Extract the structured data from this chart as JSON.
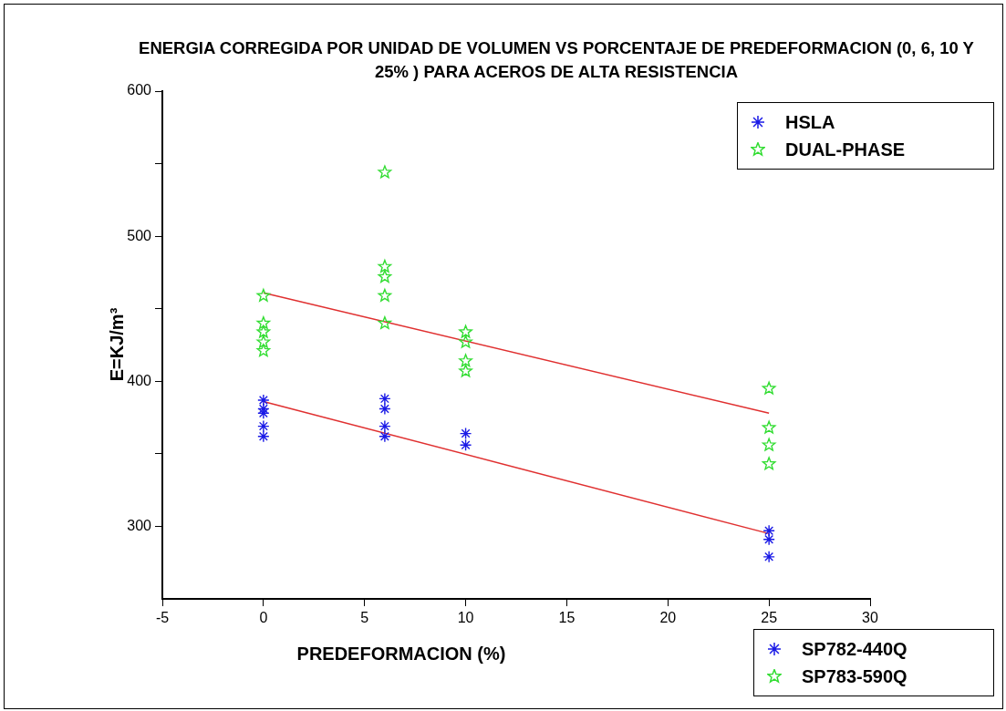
{
  "chart_data": {
    "type": "scatter",
    "title": "ENERGIA CORREGIDA POR UNIDAD DE VOLUMEN VS PORCENTAJE DE PREDEFORMACION (0, 6, 10 Y 25% ) PARA ACEROS DE ALTA RESISTENCIA",
    "xlabel": "PREDEFORMACION (%)",
    "ylabel": "E=KJ/m³",
    "series": [
      {
        "name": "HSLA",
        "color": "#1a1ae6",
        "marker": "cross",
        "x": [
          0,
          0,
          0,
          0,
          0,
          6,
          6,
          6,
          6,
          10,
          10,
          25,
          25,
          25
        ],
        "values": [
          387,
          381,
          378,
          369,
          362,
          388,
          381,
          369,
          362,
          364,
          356,
          297,
          291,
          279
        ]
      },
      {
        "name": "DUAL-PHASE",
        "color": "#33dd33",
        "marker": "star",
        "x": [
          0,
          0,
          0,
          0,
          0,
          6,
          6,
          6,
          6,
          6,
          10,
          10,
          10,
          10,
          25,
          25,
          25,
          25
        ],
        "values": [
          459,
          440,
          434,
          427,
          421,
          544,
          479,
          472,
          459,
          440,
          434,
          427,
          414,
          407,
          395,
          368,
          356,
          343
        ]
      },
      {
        "type": "line",
        "color": "#e03030",
        "marker": "none",
        "x": [
          0,
          25
        ],
        "values": [
          461,
          378
        ]
      },
      {
        "type": "line",
        "color": "#e03030",
        "marker": "none",
        "x": [
          0,
          25
        ],
        "values": [
          386,
          295
        ]
      }
    ],
    "annotations": [
      "SP782-440Q",
      "SP783-590Q"
    ],
    "xlim": [
      -5,
      30
    ],
    "xticks": [
      -5,
      0,
      5,
      10,
      15,
      20,
      25,
      30
    ],
    "ylim": [
      250,
      600
    ],
    "yticks": [
      300,
      {
        "value": 350,
        "label": null
      },
      400,
      {
        "value": 450,
        "label": null
      },
      500,
      {
        "value": 550,
        "label": null
      },
      600
    ],
    "grid": false,
    "legend": "top right"
  }
}
